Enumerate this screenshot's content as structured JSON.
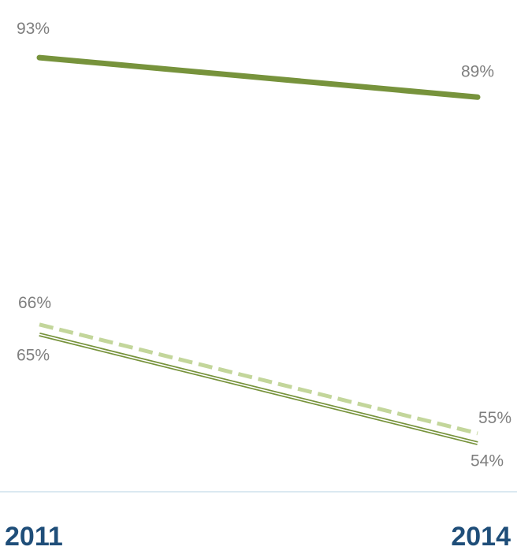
{
  "chart_data": {
    "type": "line",
    "title": "",
    "xlabel": "",
    "ylabel": "",
    "categories": [
      "2011",
      "2014"
    ],
    "ylim": [
      50,
      95
    ],
    "grid": false,
    "legend": "none",
    "series": [
      {
        "values": [
          93,
          89
        ],
        "labels": [
          "93%",
          "89%"
        ],
        "color": "#77933c",
        "style": "solid-thick"
      },
      {
        "values": [
          66,
          55
        ],
        "labels": [
          "66%",
          "55%"
        ],
        "color": "#c3d69b",
        "style": "dashed"
      },
      {
        "values": [
          65,
          54
        ],
        "labels": [
          "65%",
          "54%"
        ],
        "color": "#77933c",
        "style": "double-thin"
      }
    ]
  },
  "colors": {
    "label_text": "#7f7f7f",
    "tick_text": "#1f4e79",
    "axis_line": "#dbe9f1"
  }
}
